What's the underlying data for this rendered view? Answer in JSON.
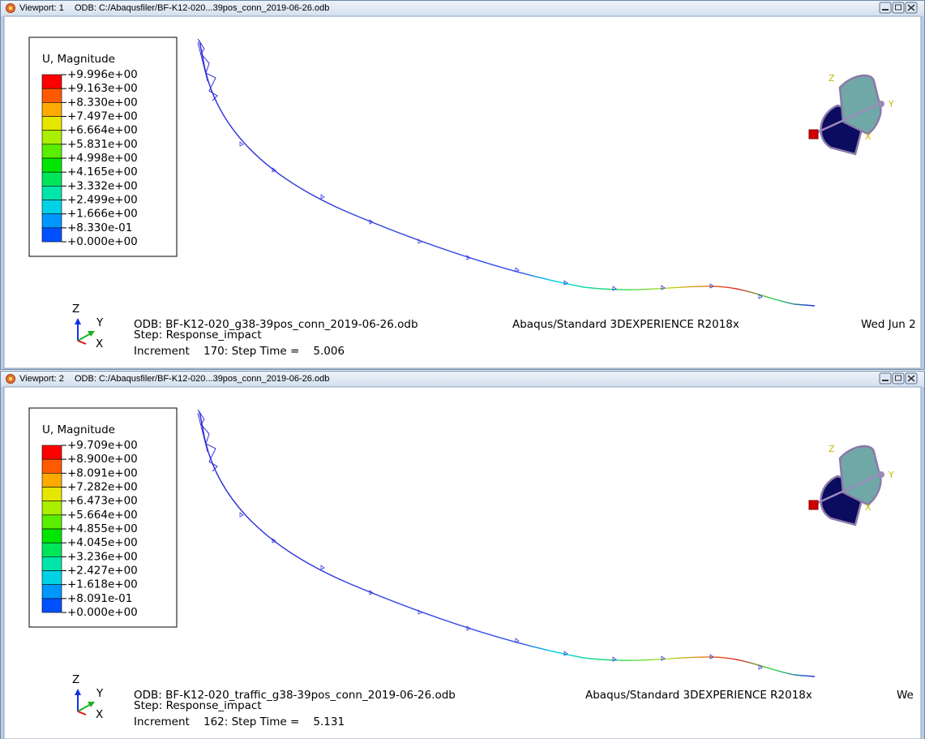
{
  "viewports": [
    {
      "title": "Viewport: 1",
      "odb_path": "ODB: C:/Abaqusfiler/BF-K12-020...39pos_conn_2019-06-26.odb",
      "legend": {
        "title": "U, Magnitude",
        "labels": [
          "+9.996e+00",
          "+9.163e+00",
          "+8.330e+00",
          "+7.497e+00",
          "+6.664e+00",
          "+5.831e+00",
          "+4.998e+00",
          "+4.165e+00",
          "+3.332e+00",
          "+2.499e+00",
          "+1.666e+00",
          "+8.330e-01",
          "+0.000e+00"
        ]
      },
      "view_triad": [
        "Z",
        "Y",
        "X"
      ],
      "triad": [
        "Z",
        "Y",
        "X"
      ],
      "info": {
        "odb": "ODB: BF-K12-020_g38-39pos_conn_2019-06-26.odb",
        "solver": "Abaqus/Standard 3DEXPERIENCE R2018x",
        "date": "Wed Jun 2",
        "step": "Step: Response_impact",
        "increment": "Increment    170: Step Time =    5.006"
      }
    },
    {
      "title": "Viewport: 2",
      "odb_path": "ODB: C:/Abaqusfiler/BF-K12-020...39pos_conn_2019-06-26.odb",
      "legend": {
        "title": "U, Magnitude",
        "labels": [
          "+9.709e+00",
          "+8.900e+00",
          "+8.091e+00",
          "+7.282e+00",
          "+6.473e+00",
          "+5.664e+00",
          "+4.855e+00",
          "+4.045e+00",
          "+3.236e+00",
          "+2.427e+00",
          "+1.618e+00",
          "+8.091e-01",
          "+0.000e+00"
        ]
      },
      "view_triad": [
        "Z",
        "Y",
        "X"
      ],
      "triad": [
        "Z",
        "Y",
        "X"
      ],
      "info": {
        "odb": "ODB: BF-K12-020_traffic_g38-39pos_conn_2019-06-26.odb",
        "solver": "Abaqus/Standard 3DEXPERIENCE R2018x",
        "date": "We",
        "step": "Step: Response_impact",
        "increment": "Increment    162: Step Time =    5.131"
      }
    }
  ]
}
